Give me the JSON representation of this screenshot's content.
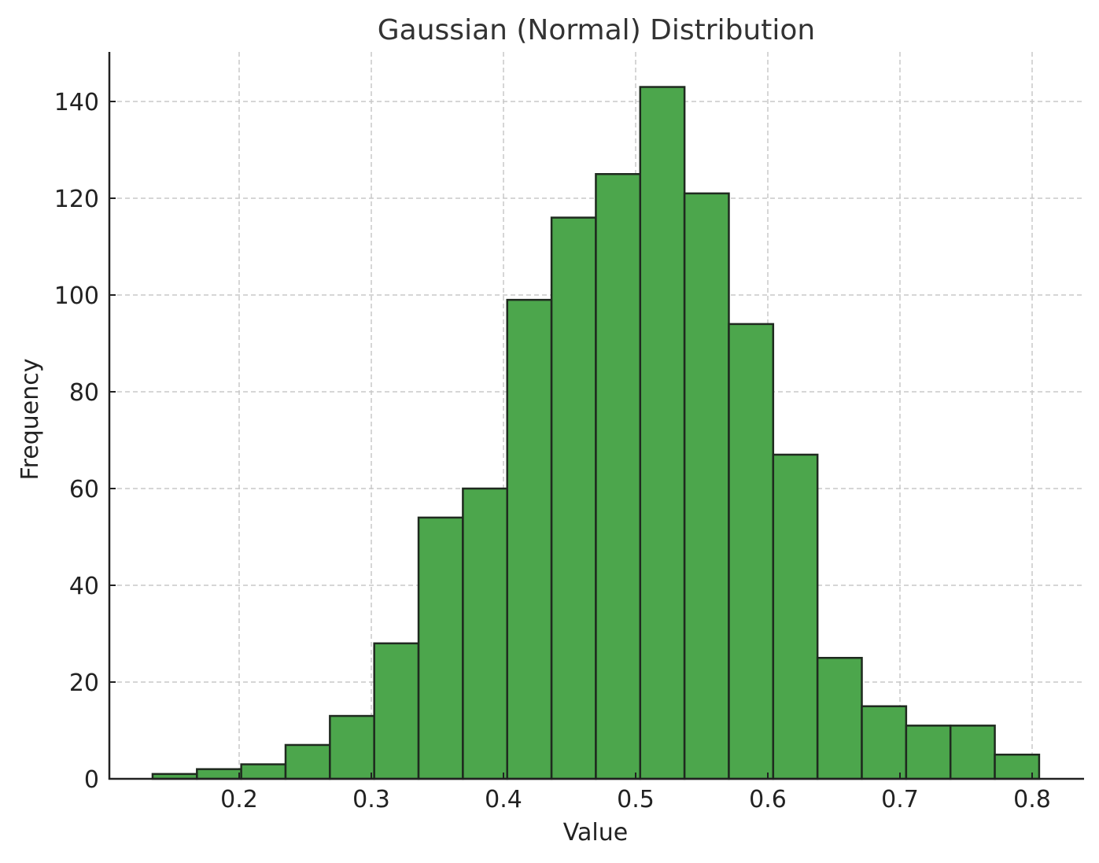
{
  "chart_data": {
    "type": "bar",
    "subtype": "histogram",
    "title": "Gaussian (Normal) Distribution",
    "xlabel": "Value",
    "ylabel": "Frequency",
    "bin_start": 0.1345,
    "bin_width": 0.03354,
    "values": [
      1,
      2,
      3,
      7,
      13,
      28,
      54,
      60,
      99,
      116,
      125,
      143,
      121,
      94,
      67,
      25,
      15,
      11,
      11,
      5
    ],
    "xticks": [
      0.2,
      0.3,
      0.4,
      0.5,
      0.6,
      0.7,
      0.8
    ],
    "xtick_labels": [
      "0.2",
      "0.3",
      "0.4",
      "0.5",
      "0.6",
      "0.7",
      "0.8"
    ],
    "yticks": [
      0,
      20,
      40,
      60,
      80,
      100,
      120,
      140
    ],
    "ytick_labels": [
      "0",
      "20",
      "40",
      "60",
      "80",
      "100",
      "120",
      "140"
    ],
    "xlim": [
      0.1015,
      0.8384
    ],
    "ylim": [
      0,
      150
    ],
    "grid": true,
    "bar_color": "#4ca64c",
    "edge_color": "#1f2a1f"
  }
}
